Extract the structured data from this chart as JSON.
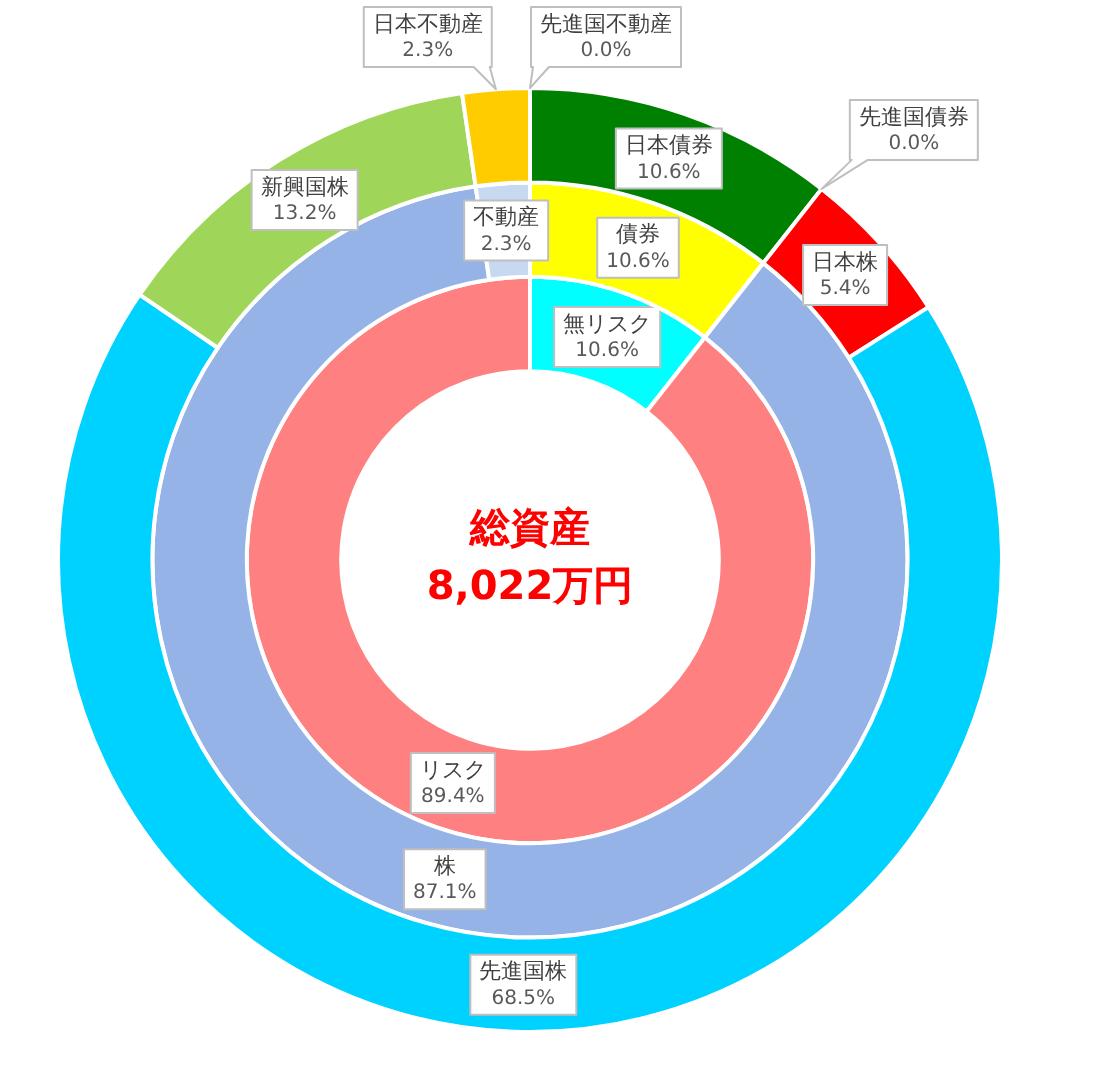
{
  "chart_data": [
    {
      "type": "donut",
      "categories": [
        "無リスク",
        "リスク"
      ],
      "values": [
        10.6,
        89.4
      ],
      "colors": [
        "#00ffff",
        "#ff8080"
      ],
      "value_labels": [
        "10.6%",
        "89.4%"
      ],
      "annotations": [
        "総資産",
        "8,022万円"
      ]
    },
    {
      "type": "donut",
      "categories": [
        "債券",
        "株",
        "不動産"
      ],
      "values": [
        10.6,
        87.1,
        2.3
      ],
      "colors": [
        "#ffff00",
        "#95b3e6",
        "#c6d9f1"
      ],
      "value_labels": [
        "10.6%",
        "87.1%",
        "2.3%"
      ]
    },
    {
      "type": "donut",
      "categories": [
        "日本債券",
        "先進国債券",
        "日本株",
        "先進国株",
        "新興国株",
        "日本不動産",
        "先進国不動産"
      ],
      "values": [
        10.6,
        0.0,
        5.4,
        68.5,
        13.2,
        2.3,
        0.0
      ],
      "colors": [
        "#008000",
        "#00b050",
        "#ff0000",
        "#00d2ff",
        "#9fd65a",
        "#ffcc00",
        "#ffc000"
      ],
      "value_labels": [
        "10.6%",
        "0.0%",
        "5.4%",
        "68.5%",
        "13.2%",
        "2.3%",
        "0.0%"
      ]
    }
  ]
}
